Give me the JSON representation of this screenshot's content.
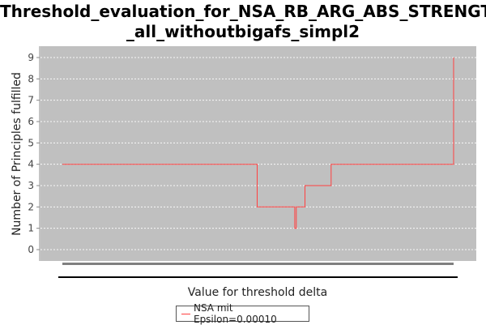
{
  "chart_data": {
    "type": "line",
    "title_line1": "Threshold_evaluation_for_NSA_RB_ARG_ABS_STRENGTH",
    "title_line2": "_all_withoutbigafs_simpl2",
    "xlabel": "Value for threshold delta",
    "ylabel": "Number of Principles fulfilled",
    "ylim": [
      0,
      9
    ],
    "yticks": [
      "0",
      "1",
      "2",
      "3",
      "4",
      "5",
      "6",
      "7",
      "8",
      "9"
    ],
    "xlim": [
      0,
      1
    ],
    "grid": true,
    "legend_position": "bottom-center",
    "series": [
      {
        "name": "NSA mit Epsilon=0.00010",
        "color": "#ff4040",
        "x": [
          0.0,
          0.498,
          0.498,
          0.594,
          0.594,
          0.598,
          0.598,
          0.62,
          0.62,
          0.687,
          0.687,
          1.0,
          1.0
        ],
        "y": [
          4,
          4,
          2,
          2,
          1,
          1,
          2,
          2,
          3,
          3,
          4,
          4,
          9
        ]
      }
    ]
  }
}
